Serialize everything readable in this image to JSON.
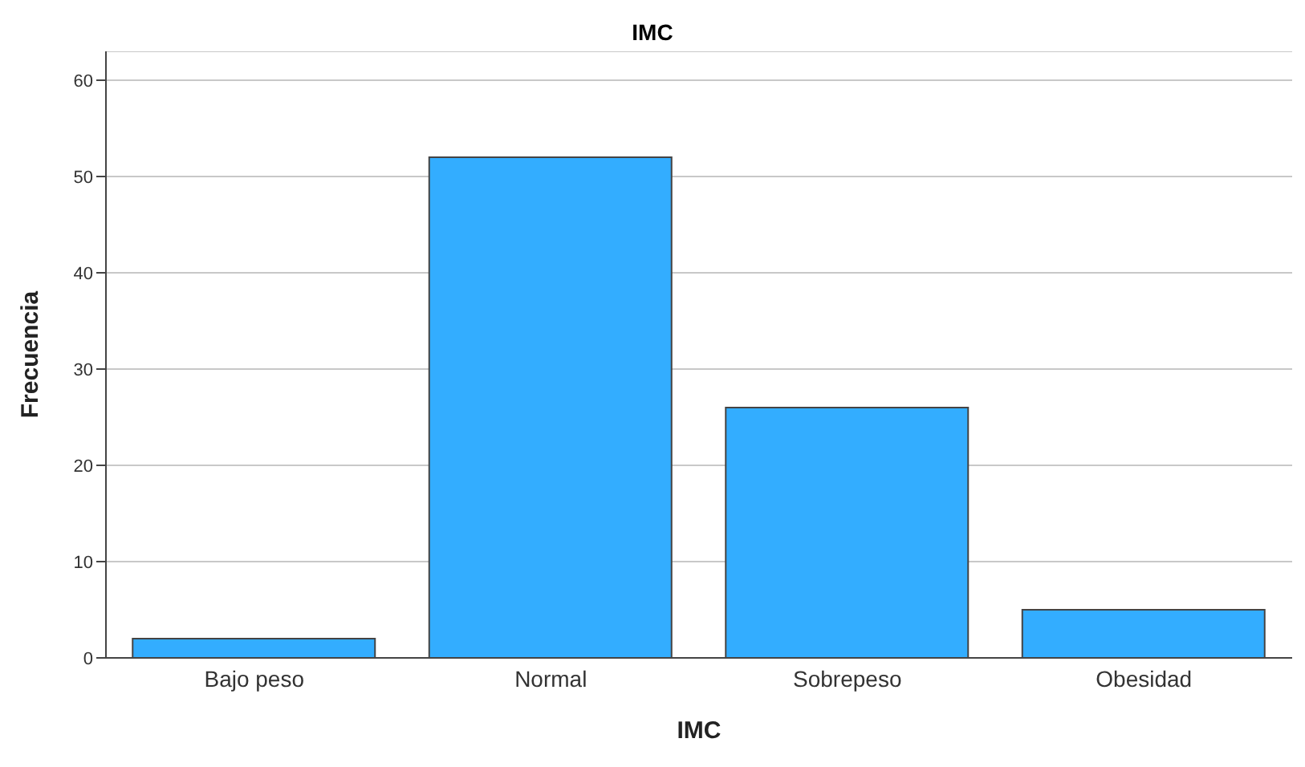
{
  "chart_data": {
    "type": "bar",
    "title": "IMC",
    "xlabel": "IMC",
    "ylabel": "Frecuencia",
    "categories": [
      "Bajo peso",
      "Normal",
      "Sobrepeso",
      "Obesidad"
    ],
    "values": [
      2,
      52,
      26,
      5
    ],
    "color": "#33adff",
    "ylim": [
      0,
      63
    ],
    "yticks": [
      0,
      10,
      20,
      30,
      40,
      50,
      60
    ],
    "grid": "y"
  }
}
